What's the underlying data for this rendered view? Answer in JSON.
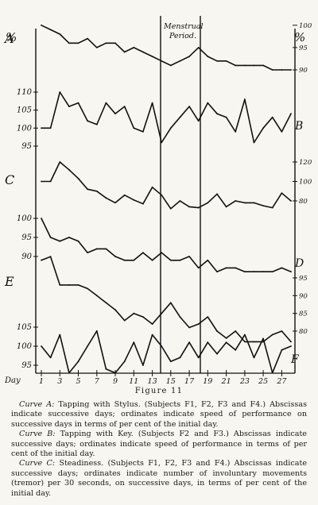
{
  "chart_data": [
    {
      "id": "A",
      "type": "line",
      "label": "A",
      "right_ticks": [
        "100",
        "95",
        "90"
      ],
      "left_ticks": [],
      "x": [
        1,
        2,
        3,
        4,
        5,
        6,
        7,
        8,
        9,
        10,
        11,
        12,
        13,
        14,
        15,
        16,
        17,
        18,
        19,
        20,
        21,
        22,
        23,
        24,
        25,
        26,
        27,
        28
      ],
      "values": [
        100,
        99,
        98,
        96,
        96,
        97,
        95,
        96,
        96,
        94,
        95,
        94,
        93,
        92,
        91,
        92,
        93,
        95,
        93,
        92,
        92,
        91,
        91,
        91,
        91,
        90,
        90,
        90
      ]
    },
    {
      "id": "B",
      "type": "line",
      "label": "B",
      "right_ticks": [],
      "left_ticks": [
        "110",
        "105",
        "100",
        "95"
      ],
      "x": [
        1,
        2,
        3,
        4,
        5,
        6,
        7,
        8,
        9,
        10,
        11,
        12,
        13,
        14,
        15,
        16,
        17,
        18,
        19,
        20,
        21,
        22,
        23,
        24,
        25,
        26,
        27,
        28
      ],
      "values": [
        100,
        100,
        110,
        106,
        107,
        102,
        101,
        107,
        104,
        106,
        100,
        99,
        107,
        96,
        100,
        103,
        106,
        102,
        107,
        104,
        103,
        99,
        108,
        96,
        100,
        103,
        99,
        104
      ]
    },
    {
      "id": "C",
      "type": "line",
      "label": "C",
      "right_ticks": [
        "120",
        "100",
        "80"
      ],
      "left_ticks": [],
      "x": [
        1,
        2,
        3,
        4,
        5,
        6,
        7,
        8,
        9,
        10,
        11,
        12,
        13,
        14,
        15,
        16,
        17,
        18,
        19,
        20,
        21,
        22,
        23,
        24,
        25,
        26,
        27,
        28
      ],
      "values": [
        100,
        100,
        120,
        112,
        103,
        92,
        90,
        83,
        78,
        86,
        81,
        77,
        94,
        86,
        72,
        80,
        74,
        73,
        78,
        87,
        74,
        80,
        78,
        78,
        75,
        73,
        88,
        80
      ]
    },
    {
      "id": "D",
      "type": "line",
      "label": "D",
      "right_ticks": [],
      "left_ticks": [
        "100",
        "95",
        "90"
      ],
      "x": [
        1,
        2,
        3,
        4,
        5,
        6,
        7,
        8,
        9,
        10,
        11,
        12,
        13,
        14,
        15,
        16,
        17,
        18,
        19,
        20,
        21,
        22,
        23,
        24,
        25,
        26,
        27,
        28
      ],
      "values": [
        100,
        95,
        94,
        95,
        94,
        91,
        92,
        92,
        90,
        89,
        89,
        91,
        89,
        91,
        89,
        89,
        90,
        87,
        89,
        86,
        87,
        87,
        86,
        86,
        86,
        86,
        87,
        86
      ]
    },
    {
      "id": "E",
      "type": "line",
      "label": "E",
      "right_ticks": [
        "95",
        "90",
        "85",
        "80"
      ],
      "left_ticks": [],
      "x": [
        1,
        2,
        3,
        4,
        5,
        6,
        7,
        8,
        9,
        10,
        11,
        12,
        13,
        14,
        15,
        16,
        17,
        18,
        19,
        20,
        21,
        22,
        23,
        24,
        25,
        26,
        27,
        28
      ],
      "values": [
        100,
        101,
        93,
        93,
        93,
        92,
        90,
        88,
        86,
        83,
        85,
        84,
        82,
        85,
        88,
        84,
        81,
        82,
        84,
        80,
        78,
        80,
        77,
        77,
        77,
        79,
        80,
        77
      ]
    },
    {
      "id": "F",
      "type": "line",
      "label": "F",
      "right_ticks": [],
      "left_ticks": [
        "105",
        "100",
        "95"
      ],
      "x": [
        1,
        2,
        3,
        4,
        5,
        6,
        7,
        8,
        9,
        10,
        11,
        12,
        13,
        14,
        15,
        16,
        17,
        18,
        19,
        20,
        21,
        22,
        23,
        24,
        25,
        26,
        27,
        28
      ],
      "values": [
        100,
        97,
        103,
        93,
        96,
        100,
        104,
        94,
        93,
        96,
        101,
        95,
        103,
        100,
        96,
        97,
        101,
        97,
        101,
        98,
        101,
        99,
        103,
        97,
        102,
        93,
        99,
        100
      ]
    }
  ],
  "axes": {
    "left_percent_label": "%",
    "right_percent_label": "%",
    "day_axis_label": "Day",
    "day_ticks": [
      "1",
      "3",
      "5",
      "7",
      "9",
      "11",
      "13",
      "15",
      "17",
      "19",
      "21",
      "23",
      "25",
      "27"
    ],
    "menstrual_label_line1": "Menstrual",
    "menstrual_label_line2": "Period."
  },
  "figure": {
    "title": "Figure 11",
    "caption_a_head": "Curve A:",
    "caption_a_body": " Tapping with Stylus. (Subjects F1, F2, F3 and F4.) Abscissas indicate successive days; ordinates indicate speed of performance on successive days in terms of per cent of the initial day.",
    "caption_b_head": "Curve B:",
    "caption_b_body": " Tapping with Key. (Subjects F2 and F3.) Abscissas indicate successive days; ordinates indicate speed of performance in terms of per cent of the initial day.",
    "caption_c_head": "Curve C:",
    "caption_c_body": " Steadiness. (Subjects F1, F2, F3 and F4.) Abscissas indicate successive days; ordinates indicate number of involuntary movements (tremor) per 30 seconds, on successive days, in terms of per cent of the initial day."
  }
}
